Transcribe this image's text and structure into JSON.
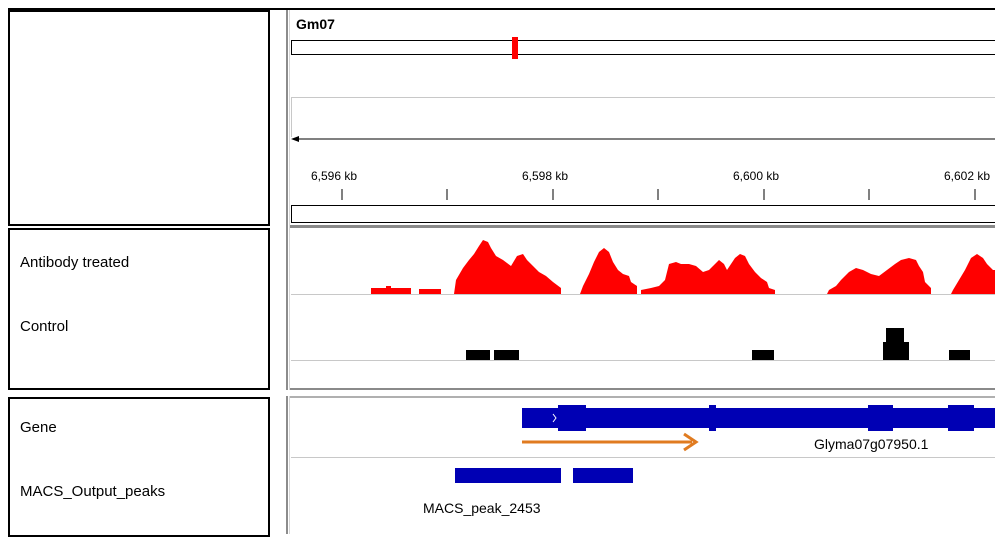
{
  "header": {
    "chromosome": "Gm07",
    "ruler_ticks": [
      "6,596 kb",
      "6,598 kb",
      "6,600 kb",
      "6,602 kb"
    ]
  },
  "tracks": {
    "data_tracks": [
      {
        "name": "Antibody treated",
        "color": "#ff0000"
      },
      {
        "name": "Control",
        "color": "#000000"
      }
    ],
    "feature_tracks": [
      {
        "name": "Gene",
        "color": "#0000b4",
        "feature_label": "Glyma07g07950.1"
      },
      {
        "name": "MACS_Output_peaks",
        "color": "#0000b4",
        "feature_label": "MACS_peak_2453"
      }
    ]
  },
  "annotation": {
    "arrow_color": "#e07b20"
  }
}
